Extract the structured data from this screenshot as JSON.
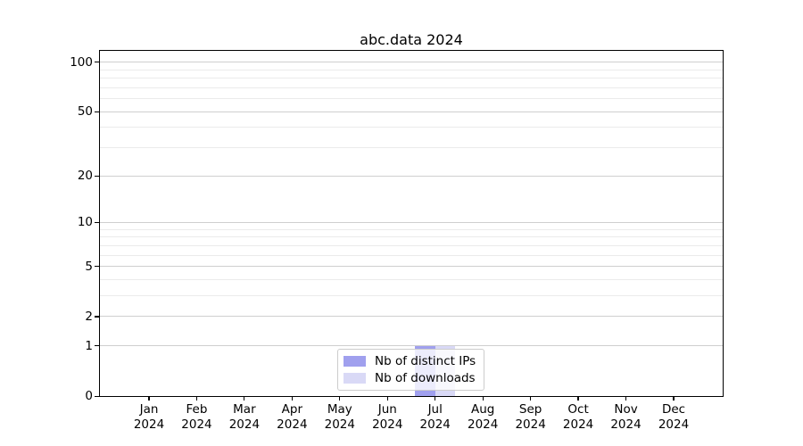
{
  "chart_data": {
    "type": "bar",
    "title": "abc.data 2024",
    "xlabel": "",
    "ylabel": "",
    "scale": "log1p",
    "categories": [
      "Jan",
      "Feb",
      "Mar",
      "Apr",
      "May",
      "Jun",
      "Jul",
      "Aug",
      "Sep",
      "Oct",
      "Nov",
      "Dec"
    ],
    "year_label": "2024",
    "series": [
      {
        "name": "Nb of distinct IPs",
        "color": "#a0a0ee",
        "values": [
          0,
          0,
          0,
          0,
          0,
          0,
          1,
          0,
          0,
          0,
          0,
          0
        ]
      },
      {
        "name": "Nb of downloads",
        "color": "#d9d9f6",
        "values": [
          0,
          0,
          0,
          0,
          0,
          0,
          1,
          0,
          0,
          0,
          0,
          0
        ]
      }
    ],
    "yticks": [
      0,
      1,
      2,
      5,
      10,
      20,
      50,
      100
    ],
    "yticks_minor": [
      3,
      4,
      6,
      7,
      8,
      9,
      30,
      40,
      60,
      70,
      80,
      90
    ],
    "ylim": [
      0,
      117
    ],
    "grid": "horizontal",
    "legend_position": "lower center",
    "colors": {
      "grid_major": "#cfcfcf",
      "grid_minor": "#ebebeb",
      "spine": "#000000",
      "text": "#000000",
      "legend_border": "#cccccc"
    }
  }
}
